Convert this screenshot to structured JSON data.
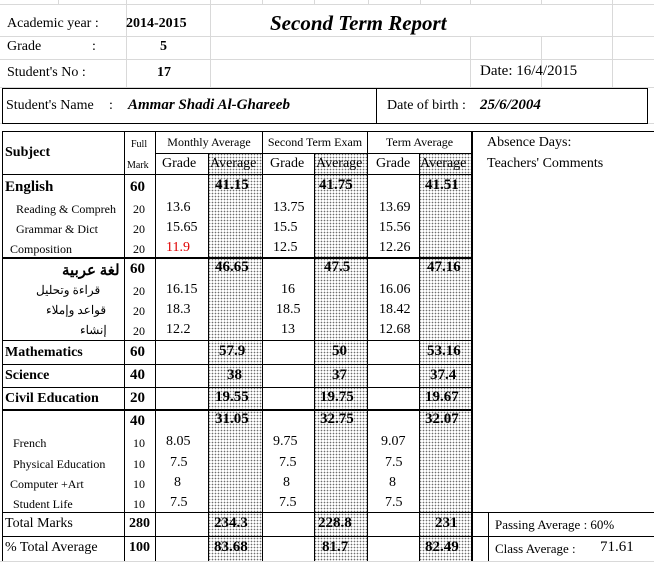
{
  "header": {
    "academic_year_label": "Academic year :",
    "academic_year_value": "2014-2015",
    "title": "Second Term Report",
    "grade_label": "Grade",
    "grade_colon": ":",
    "grade_value": "5",
    "student_no_label": "Student's No  :",
    "student_no_value": "17",
    "date_label": "Date: 16/4/2015",
    "student_name_label": "Student's Name",
    "student_name_colon": ":",
    "student_name_value": "Ammar Shadi Al-Ghareeb",
    "dob_label": "Date of birth :",
    "dob_value": "25/6/2004"
  },
  "table_headers": {
    "subject": "Subject",
    "full": "Full",
    "mark": "Mark",
    "monthly_average": "Monthly Average",
    "second_term_exam": "Second Term Exam",
    "term_average": "Term Average",
    "grade": "Grade",
    "average": "Average",
    "absence_days": "Absence Days:",
    "teachers_comments": "Teachers' Comments"
  },
  "rows": {
    "english": {
      "name": "English",
      "full": "60",
      "m_avg": "41.15",
      "s_avg": "41.75",
      "t_avg": "41.51"
    },
    "reading": {
      "name": "Reading  & Compreh",
      "full": "20",
      "m_grade": "13.6",
      "s_grade": "13.75",
      "t_grade": "13.69"
    },
    "grammar": {
      "name": "Grammar & Dict",
      "full": "20",
      "m_grade": "15.65",
      "s_grade": "15.5",
      "t_grade": "15.56"
    },
    "composition": {
      "name": "Composition",
      "full": "20",
      "m_grade": "11.9",
      "s_grade": "12.5",
      "t_grade": "12.26"
    },
    "arabic": {
      "name": "لغة عربية",
      "full": "60",
      "m_avg": "46.65",
      "s_avg": "47.5",
      "t_avg": "47.16"
    },
    "ar_reading": {
      "name": "قراءة وتحليل",
      "full": "20",
      "m_grade": "16.15",
      "s_grade": "16",
      "t_grade": "16.06"
    },
    "ar_grammar": {
      "name": "قواعد وإملاء",
      "full": "20",
      "m_grade": "18.3",
      "s_grade": "18.5",
      "t_grade": "18.42"
    },
    "ar_composition": {
      "name": "إنشاء",
      "full": "20",
      "m_grade": "12.2",
      "s_grade": "13",
      "t_grade": "12.68"
    },
    "mathematics": {
      "name": "Mathematics",
      "full": "60",
      "m_avg": "57.9",
      "s_avg": "50",
      "t_avg": "53.16"
    },
    "science": {
      "name": "Science",
      "full": "40",
      "m_avg": "38",
      "s_avg": "37",
      "t_avg": "37.4"
    },
    "civil": {
      "name": "Civil Education",
      "full": "20",
      "m_avg": "19.55",
      "s_avg": "19.75",
      "t_avg": "19.67"
    },
    "activities": {
      "full": "40",
      "m_avg": "31.05",
      "s_avg": "32.75",
      "t_avg": "32.07"
    },
    "french": {
      "name": "French",
      "full": "10",
      "m_grade": "8.05",
      "s_grade": "9.75",
      "t_grade": "9.07"
    },
    "pe": {
      "name": "Physical Education",
      "full": "10",
      "m_grade": "7.5",
      "s_grade": "7.5",
      "t_grade": "7.5"
    },
    "computer": {
      "name": "Computer +Art",
      "full": "10",
      "m_grade": "8",
      "s_grade": "8",
      "t_grade": "8"
    },
    "student_life": {
      "name": "Student Life",
      "full": "10",
      "m_grade": "7.5",
      "s_grade": "7.5",
      "t_grade": "7.5"
    },
    "total": {
      "name": "Total Marks",
      "full": "280",
      "m_avg": "234.3",
      "s_avg": "228.8",
      "t_avg": "231"
    },
    "percent": {
      "name": "% Total Average",
      "full": "100",
      "m_avg": "83.68",
      "s_avg": "81.7",
      "t_avg": "82.49"
    }
  },
  "footer": {
    "passing_average": "Passing Average : 60%",
    "class_average_label": "Class Average :",
    "class_average_value": "71.61"
  },
  "colors": {
    "red_mark": "#e00000"
  }
}
